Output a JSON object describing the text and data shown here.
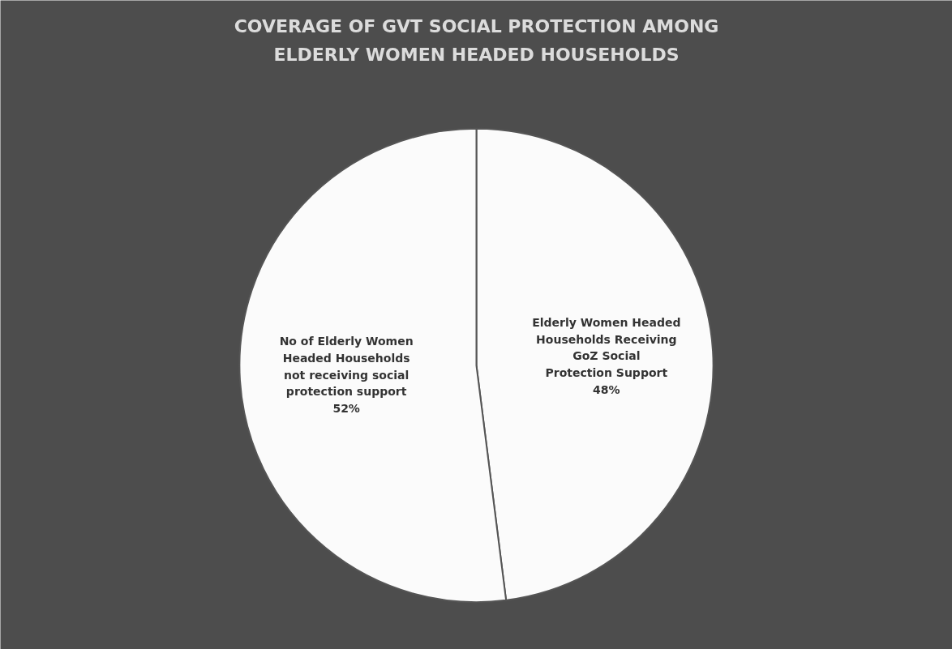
{
  "chart_data": {
    "type": "pie",
    "title": "COVERAGE OF  GVT SOCIAL PROTECTION AMONG ELDERLY WOMEN HEADED HOUSEHOLDS",
    "categories": [
      "Elderly Women Headed Households Receiving GoZ Social Protection Support",
      "No of Elderly Women Headed Households not receiving social protection support"
    ],
    "values": [
      48,
      52
    ],
    "value_labels": [
      "48%",
      "52%"
    ],
    "colors": [
      "#fbfbfb",
      "#fbfbfb"
    ],
    "legend": false
  }
}
